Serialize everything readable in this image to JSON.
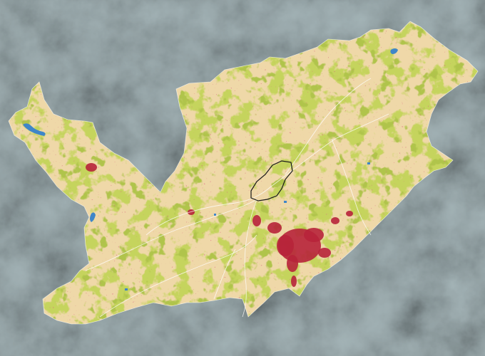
{
  "map": {
    "legend_items": [],
    "colors": {
      "terrain_base": "#a4b4b7",
      "terrain_shadow": "#7f9398",
      "terrain_light": "#c5d0d1",
      "cropland": "#efd8a8",
      "vegetation": "#8faa1c",
      "vegetation_dark": "#6f8c12",
      "urban": "#b7233a",
      "water": "#3f86c8",
      "boundary_white": "#ffffff",
      "boundary_black": "#1a1a1a"
    },
    "layers": [
      "terrain-hillshade",
      "cropland",
      "vegetation",
      "urban-areas",
      "water-bodies",
      "sub-basin-boundaries",
      "highlighted-basin"
    ]
  }
}
